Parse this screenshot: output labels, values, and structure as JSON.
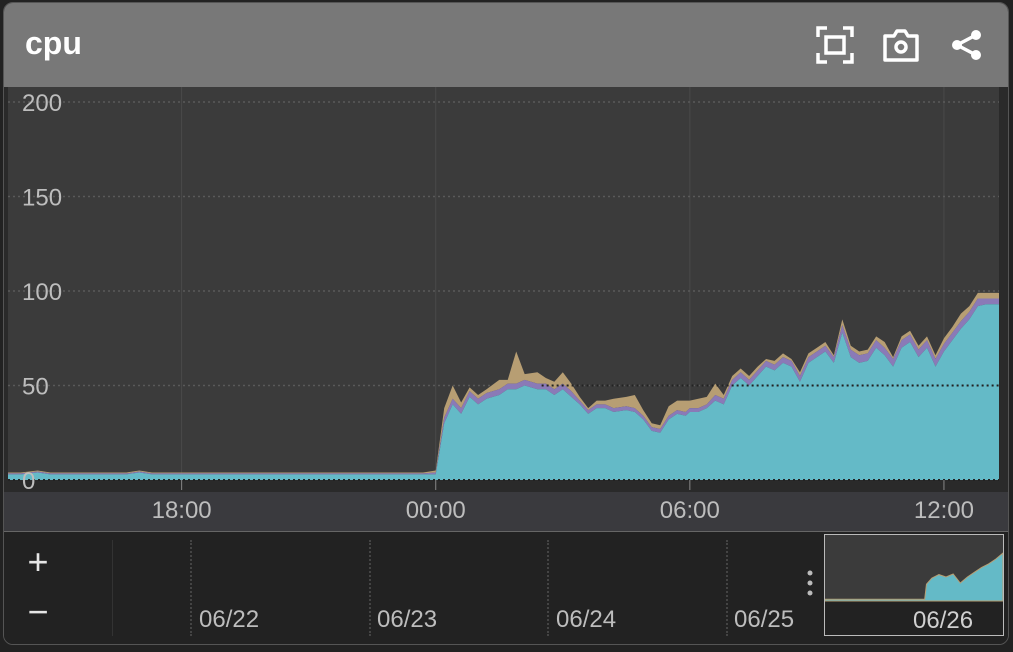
{
  "panel": {
    "title": "cpu"
  },
  "header_icons": [
    "fullscreen-icon",
    "camera-icon",
    "share-icon"
  ],
  "navigator": {
    "zoom_in": "+",
    "zoom_out": "−",
    "dates": [
      "06/22",
      "06/23",
      "06/24",
      "06/25",
      "06/26"
    ]
  },
  "colors": {
    "background": "#3b3b3b",
    "cyan": "#64bac7",
    "purple": "#8a7ab7",
    "tan": "#b79e73",
    "header": "#787878"
  },
  "chart_data": {
    "type": "area",
    "stacked": true,
    "title": "",
    "xlabel": "",
    "ylabel": "",
    "ylim": [
      0,
      200
    ],
    "y_ticks": [
      0,
      50,
      100,
      150,
      200
    ],
    "x_tick_labels": [
      "18:00",
      "00:00",
      "06:00",
      "12:00"
    ],
    "x_ticks_hours": [
      18,
      24,
      30,
      36
    ],
    "x_range_hours": [
      13.9,
      37.3
    ],
    "grid": true,
    "reference_line": 50,
    "x_hours": [
      13.9,
      14.2,
      14.6,
      14.9,
      15.2,
      15.6,
      15.9,
      16.3,
      16.7,
      17.0,
      17.3,
      17.6,
      18.0,
      18.3,
      18.7,
      19.0,
      19.3,
      19.7,
      20.0,
      20.4,
      20.7,
      21.1,
      21.4,
      21.7,
      22.0,
      22.4,
      22.7,
      23.1,
      23.4,
      23.7,
      24.0,
      24.2,
      24.4,
      24.6,
      24.8,
      25.0,
      25.2,
      25.5,
      25.7,
      25.9,
      26.1,
      26.4,
      26.6,
      26.8,
      27.0,
      27.2,
      27.4,
      27.6,
      27.8,
      28.0,
      28.2,
      28.5,
      28.7,
      28.9,
      29.1,
      29.3,
      29.5,
      29.7,
      29.9,
      30.0,
      30.2,
      30.4,
      30.6,
      30.8,
      31.0,
      31.2,
      31.4,
      31.6,
      31.8,
      32.0,
      32.2,
      32.4,
      32.6,
      32.8,
      33.0,
      33.2,
      33.4,
      33.6,
      33.8,
      34.0,
      34.2,
      34.4,
      34.6,
      34.8,
      35.0,
      35.2,
      35.4,
      35.6,
      35.8,
      36.0,
      36.2,
      36.4,
      36.6,
      36.8,
      37.0,
      37.2,
      37.3
    ],
    "series": [
      {
        "values": [
          3,
          3,
          4,
          3,
          3,
          3,
          3,
          3,
          3,
          4,
          3,
          3,
          3,
          3,
          3,
          3,
          3,
          3,
          3,
          3,
          3,
          3,
          3,
          3,
          3,
          3,
          3,
          3,
          3,
          3,
          3,
          30,
          40,
          35,
          44,
          40,
          43,
          45,
          48,
          48,
          50,
          48,
          48,
          45,
          48,
          44,
          40,
          35,
          38,
          38,
          36,
          37,
          36,
          32,
          26,
          25,
          32,
          35,
          34,
          36,
          36,
          38,
          42,
          40,
          50,
          54,
          50,
          55,
          60,
          58,
          62,
          60,
          52,
          62,
          65,
          68,
          62,
          78,
          65,
          62,
          63,
          70,
          66,
          60,
          70,
          73,
          65,
          70,
          60,
          68,
          74,
          80,
          85,
          92,
          93,
          93,
          93
        ]
      },
      {
        "values": [
          0.5,
          0.5,
          0.5,
          0.5,
          0.5,
          0.5,
          0.5,
          0.5,
          0.5,
          0.5,
          0.5,
          0.5,
          0.5,
          0.5,
          0.5,
          0.5,
          0.5,
          0.5,
          0.5,
          0.5,
          0.5,
          0.5,
          0.5,
          0.5,
          0.5,
          0.5,
          0.5,
          0.5,
          0.5,
          0.5,
          1,
          3,
          3,
          3,
          3,
          3,
          3,
          3,
          3,
          3,
          3,
          3,
          3,
          3,
          3,
          3,
          2,
          2,
          2,
          2,
          2,
          2,
          2,
          2,
          2,
          2,
          2,
          2,
          2,
          2,
          2,
          2,
          3,
          3,
          3,
          3,
          3,
          3,
          3,
          3,
          3,
          3,
          3,
          3,
          3,
          3,
          3,
          4,
          4,
          4,
          4,
          4,
          4,
          4,
          4,
          4,
          4,
          4,
          4,
          4,
          4,
          4,
          4,
          4,
          3,
          3,
          3
        ]
      },
      {
        "values": [
          0.5,
          0.5,
          0.5,
          0.5,
          0.5,
          0.5,
          0.5,
          0.5,
          0.5,
          0.5,
          0.5,
          0.5,
          0.5,
          0.5,
          0.5,
          0.5,
          0.5,
          0.5,
          0.5,
          0.5,
          0.5,
          0.5,
          0.5,
          0.5,
          0.5,
          0.5,
          0.5,
          0.5,
          0.5,
          0.5,
          1,
          5,
          7,
          3,
          2,
          2,
          2,
          5,
          2,
          17,
          3,
          6,
          3,
          4,
          6,
          4,
          2,
          1,
          2,
          2,
          5,
          5,
          7,
          3,
          2,
          2,
          5,
          5,
          6,
          4,
          5,
          4,
          6,
          2,
          2,
          2,
          2,
          2,
          1,
          2,
          2,
          1,
          2,
          2,
          2,
          2,
          1,
          3,
          2,
          2,
          2,
          2,
          3,
          1,
          2,
          2,
          2,
          2,
          2,
          3,
          3,
          4,
          3,
          3,
          3,
          3,
          3
        ]
      }
    ],
    "minimap": {
      "x_days": [
        21.2,
        21.5,
        21.8,
        22.0,
        22.3,
        22.6,
        22.9,
        23.2,
        23.5,
        23.8,
        24.0,
        24.05,
        24.2,
        24.4,
        24.6,
        24.8,
        25.0,
        25.2,
        25.4,
        25.6,
        25.8,
        26.0,
        26.2
      ],
      "values": [
        3,
        3,
        3,
        3,
        3,
        3,
        3,
        3,
        3,
        3,
        3,
        28,
        38,
        44,
        40,
        45,
        30,
        40,
        48,
        56,
        62,
        70,
        80
      ]
    }
  }
}
